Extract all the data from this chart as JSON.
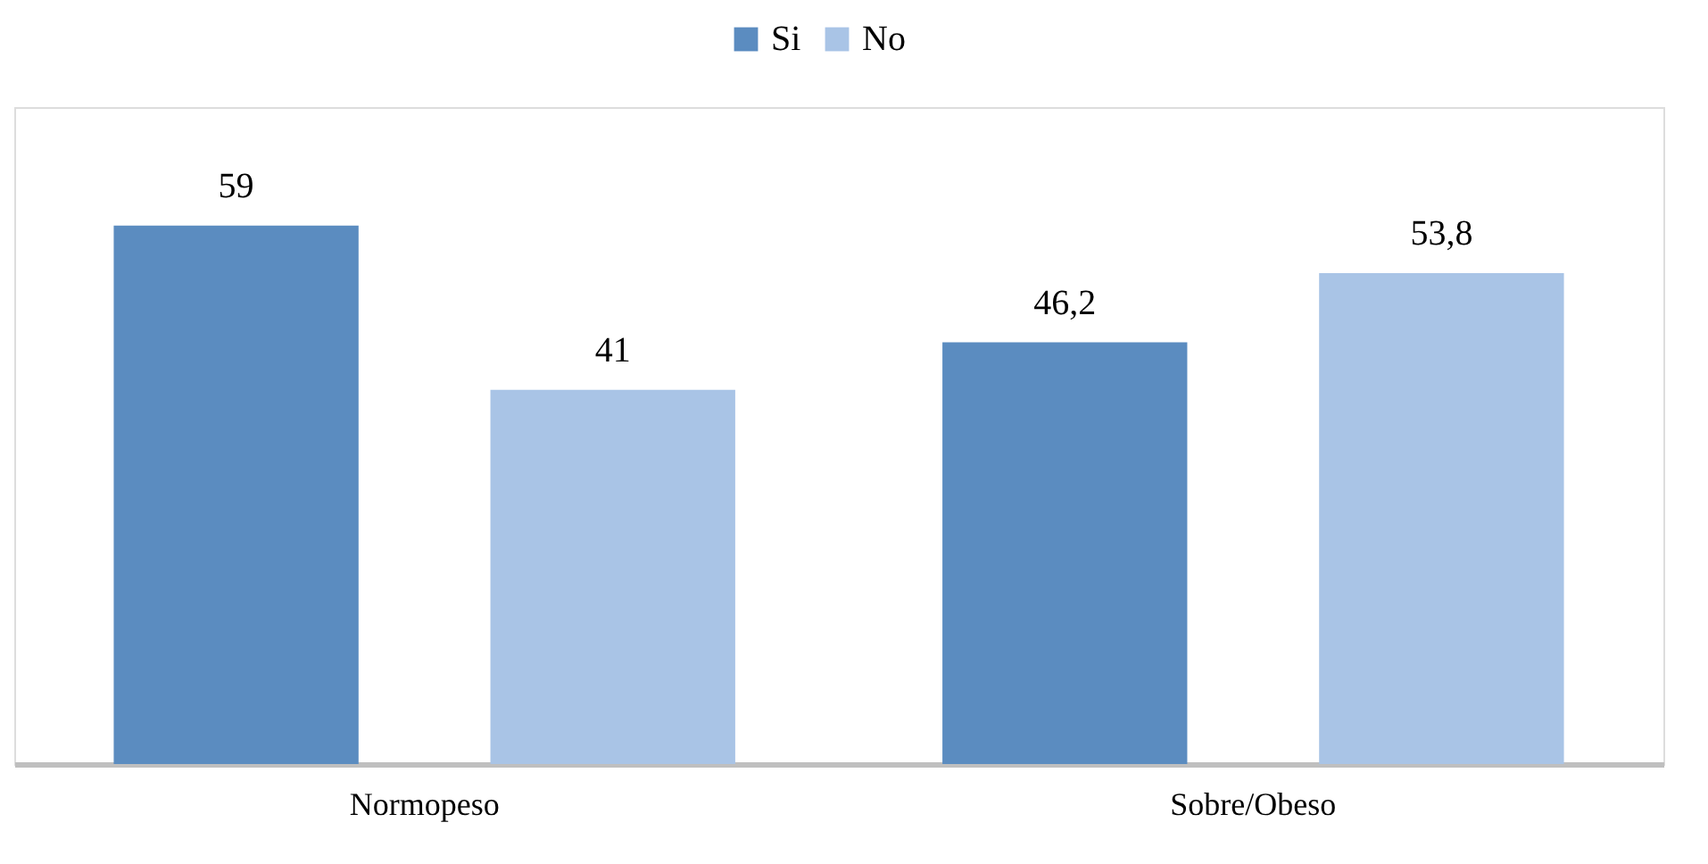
{
  "chart_data": {
    "type": "bar",
    "categories": [
      "Normopeso",
      "Sobre/Obeso"
    ],
    "series": [
      {
        "name": "Si",
        "color": "#5b8cc0",
        "values": [
          59,
          46.2
        ],
        "value_labels": [
          "59",
          "46,2"
        ]
      },
      {
        "name": "No",
        "color": "#a9c4e6",
        "values": [
          41,
          53.8
        ],
        "value_labels": [
          "41",
          "53,8"
        ]
      }
    ],
    "legend": "top"
  }
}
